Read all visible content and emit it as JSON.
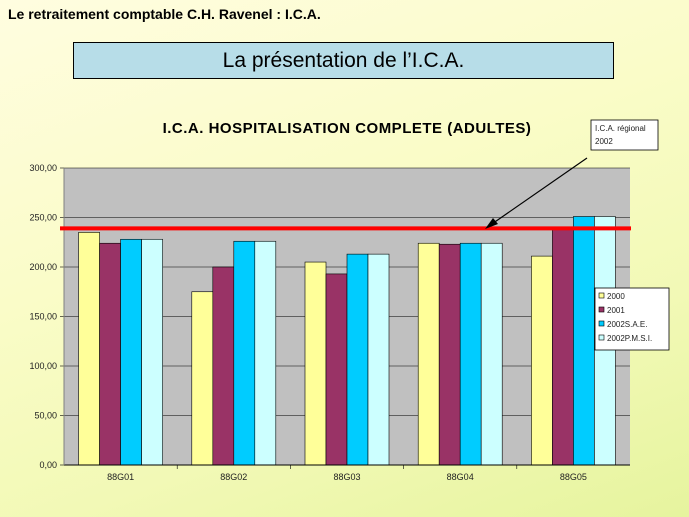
{
  "header": {
    "text": "Le retraitement comptable C.H. Ravenel : I.C.A."
  },
  "slide_title": "La présentation de l’I.C.A.",
  "callout": {
    "line1": "I.C.A. régional",
    "line2": "2002"
  },
  "colors": {
    "series": [
      "#ffff99",
      "#993366",
      "#00ccff",
      "#ccffff"
    ],
    "reference_line": "#ff0000",
    "plot_bg": "#c0c0c0"
  },
  "chart_data": {
    "type": "bar",
    "title": "I.C.A. HOSPITALISATION COMPLETE (ADULTES)",
    "categories": [
      "88G01",
      "88G02",
      "88G03",
      "88G04",
      "88G05"
    ],
    "series": [
      {
        "name": "2000",
        "values": [
          235,
          175,
          205,
          224,
          211
        ]
      },
      {
        "name": "2001",
        "values": [
          224,
          200,
          193,
          223,
          240
        ]
      },
      {
        "name": "2002S.A.E.",
        "values": [
          228,
          226,
          213,
          224,
          251
        ]
      },
      {
        "name": "2002P.M.S.I.",
        "values": [
          228,
          226,
          213,
          224,
          251
        ]
      }
    ],
    "yticks": [
      "0,00",
      "50,00",
      "100,00",
      "150,00",
      "200,00",
      "250,00",
      "300,00"
    ],
    "ylim": [
      0,
      300
    ],
    "reference_value": 239,
    "grid": true,
    "legend_position": "right"
  }
}
